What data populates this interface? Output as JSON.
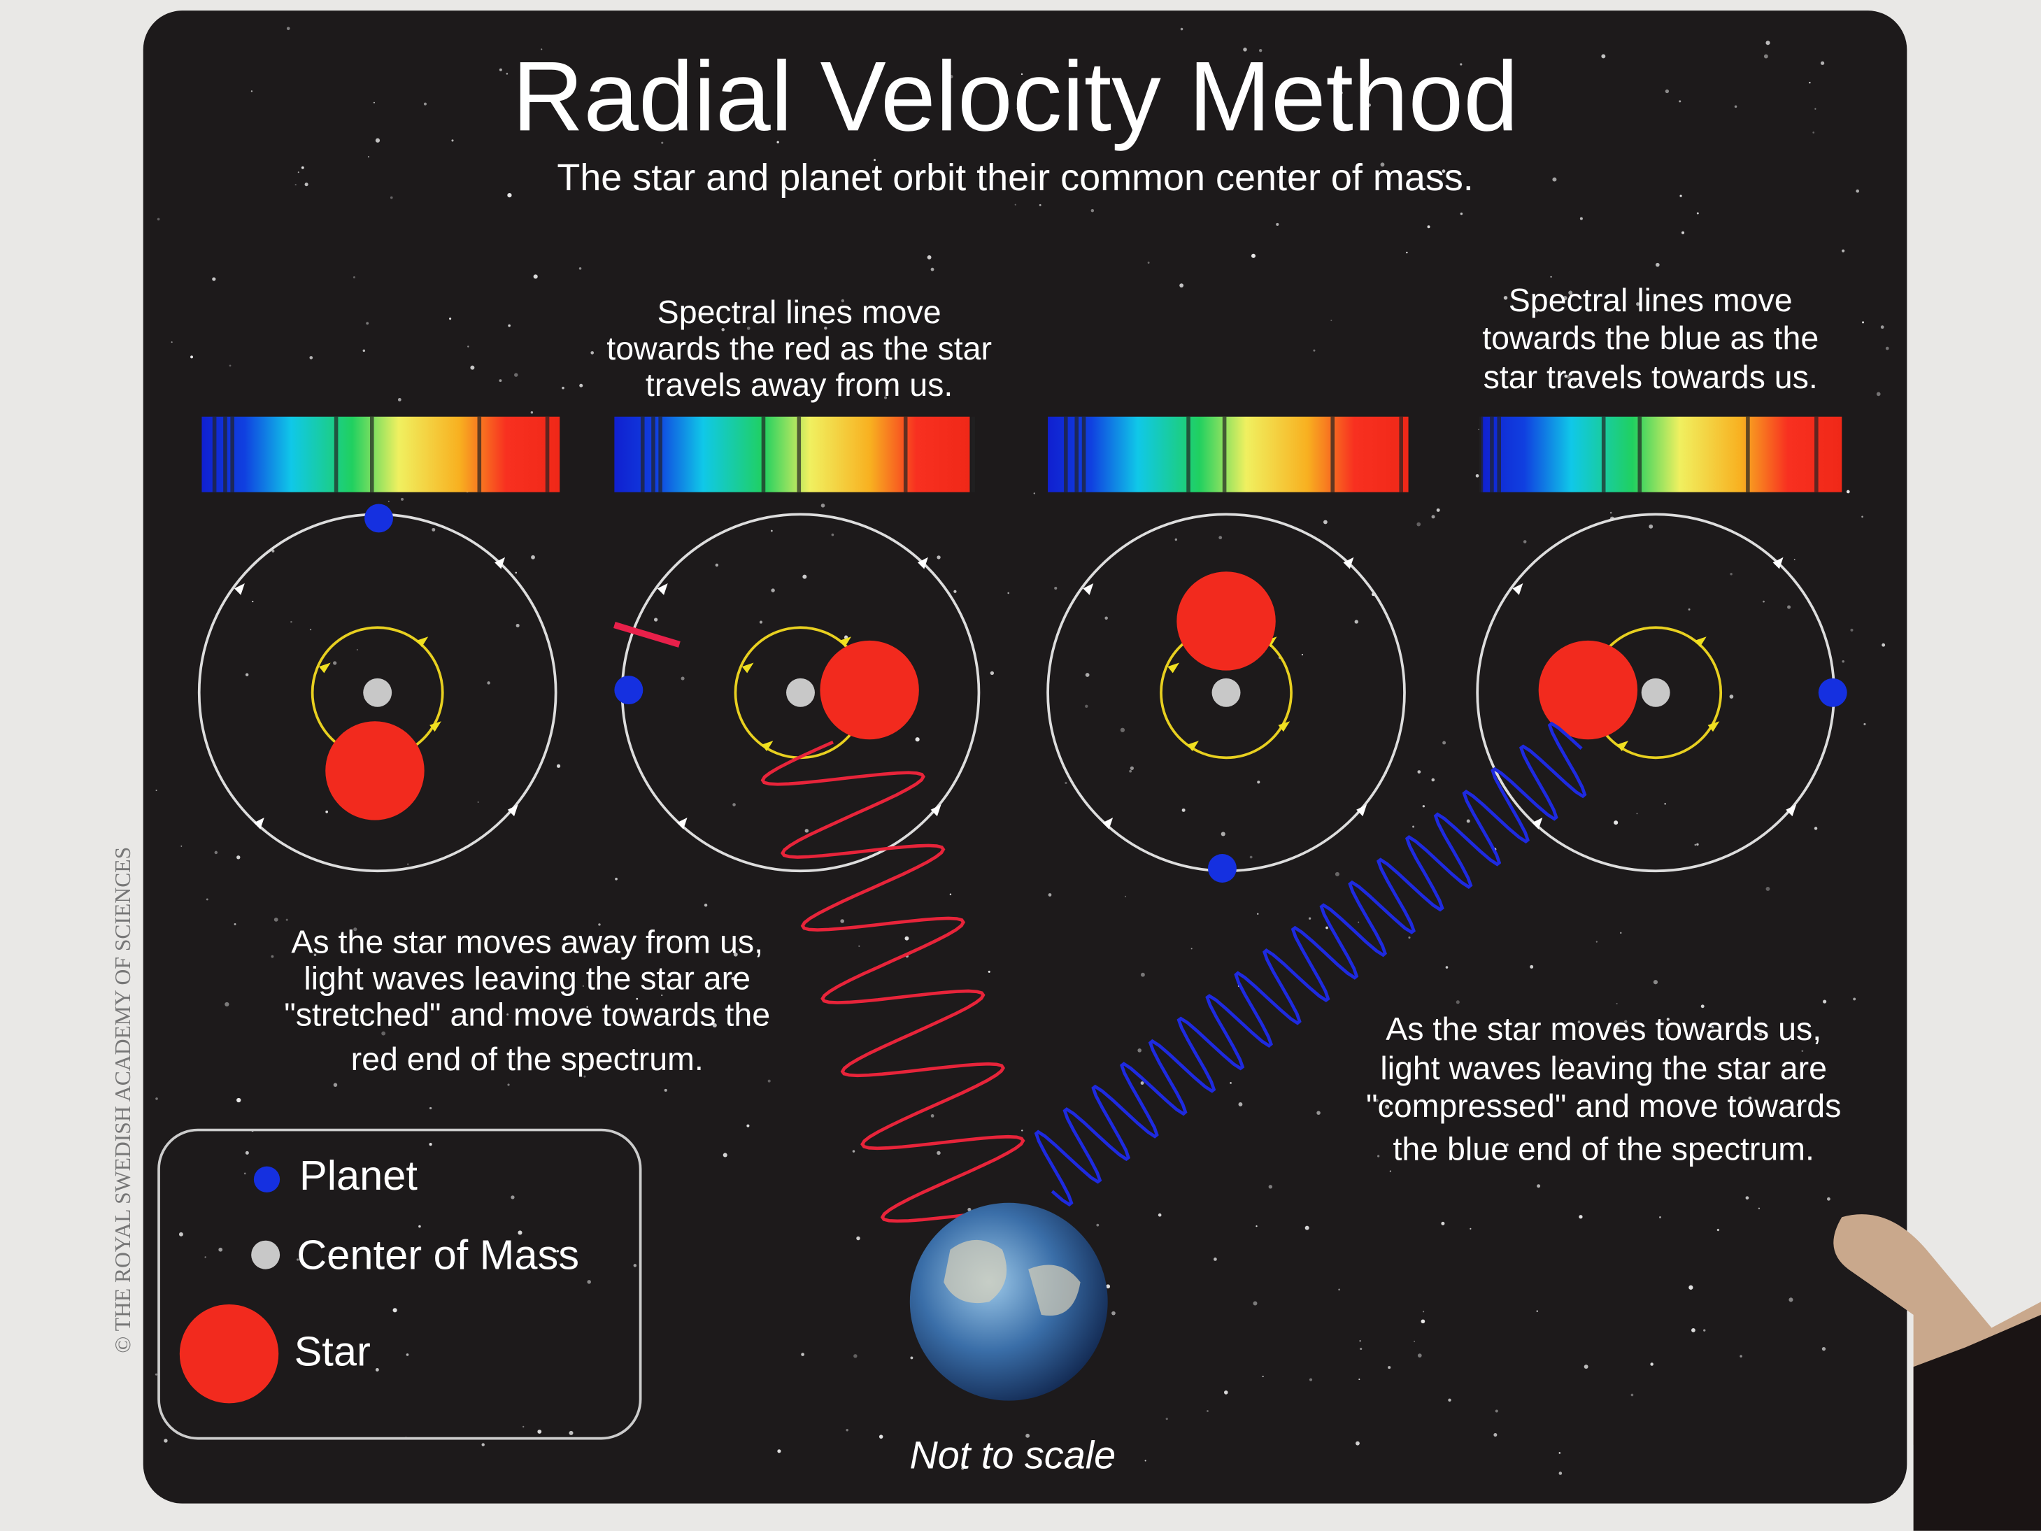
{
  "title": "Radial Velocity Method",
  "subtitle": "The star and planet orbit their common center of mass.",
  "captions": [
    {
      "lines": [
        "Spectral lines move",
        "towards the red as the star",
        "travels away from us."
      ]
    },
    {
      "lines": [
        "Spectral lines move",
        "towards the blue as the",
        "star travels towards us."
      ]
    },
    {
      "lines": [
        "As the star moves away from us,",
        "light waves leaving the star are",
        "\"stretched\" and move towards the",
        "red end of the spectrum."
      ]
    },
    {
      "lines": [
        "As the star moves towards us,",
        "light waves leaving the star are",
        "\"compressed\" and move towards",
        "the blue end of the spectrum."
      ]
    }
  ],
  "legend": {
    "items": [
      "Planet",
      "Center of Mass",
      "Star"
    ]
  },
  "note": "Not to scale",
  "credit": "© THE ROYAL SWEDISH ACADEMY OF SCIENCES"
}
